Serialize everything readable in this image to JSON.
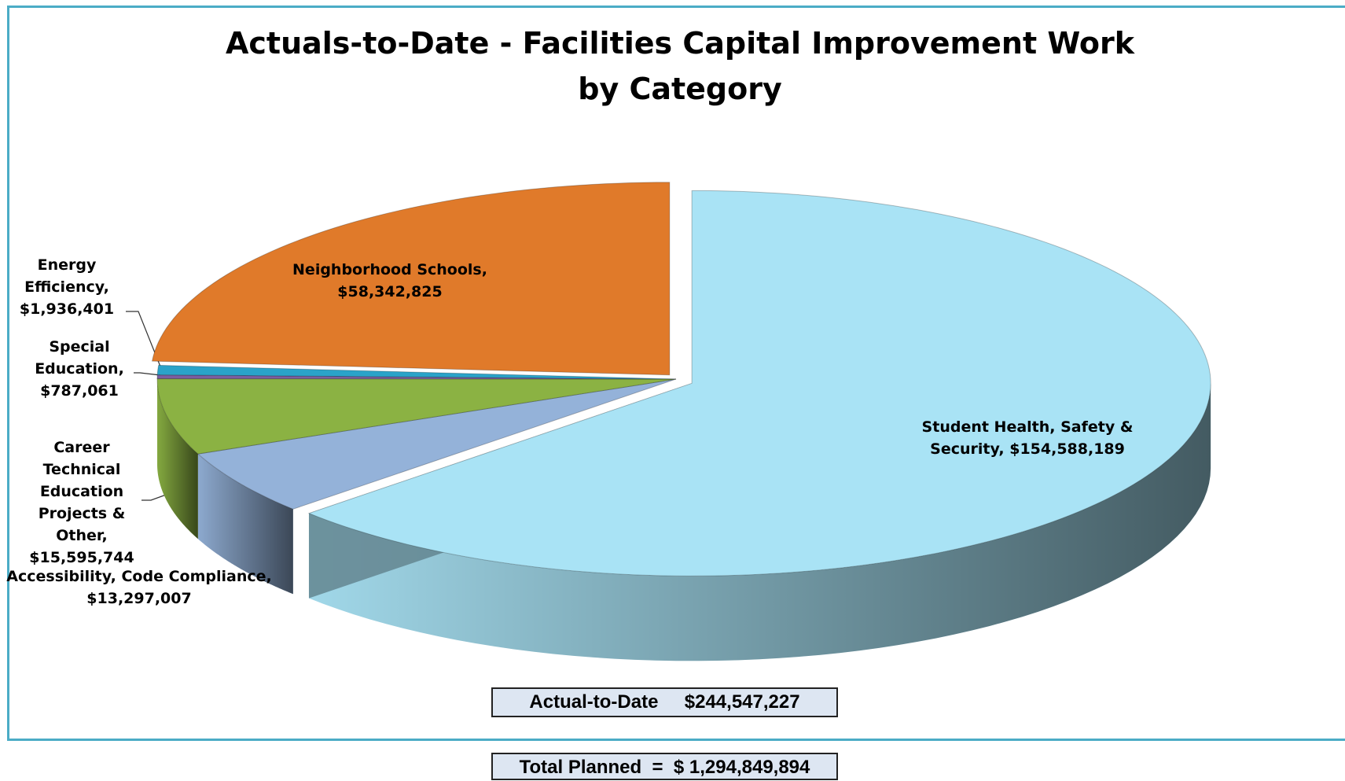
{
  "chart_data": {
    "type": "pie",
    "title": "Actuals-to-Date - Facilities Capital Improvement Work\nby Category",
    "categories": [
      "Student Health, Safety & Security,",
      "Accessibility, Code Compliance,",
      "Career Technical Education Projects & Other,",
      "Special Education,",
      "Energy Efficiency,",
      "Neighborhood Schools,"
    ],
    "values": [
      154588189,
      13297007,
      15595744,
      787061,
      1936401,
      58342825
    ],
    "value_labels": [
      "$154,588,189",
      "$13,297,007",
      "$15,595,744",
      "$787,061",
      "$1,936,401",
      "$58,342,825"
    ],
    "colors": [
      "#a9e3f5",
      "#94b2d9",
      "#8bb243",
      "#7a5ea0",
      "#2aa3c9",
      "#e07a2a"
    ],
    "annotations": [
      "Actual-to-Date",
      "$244,547,227",
      "Total Planned  =  $ 1,294,849,894"
    ]
  }
}
